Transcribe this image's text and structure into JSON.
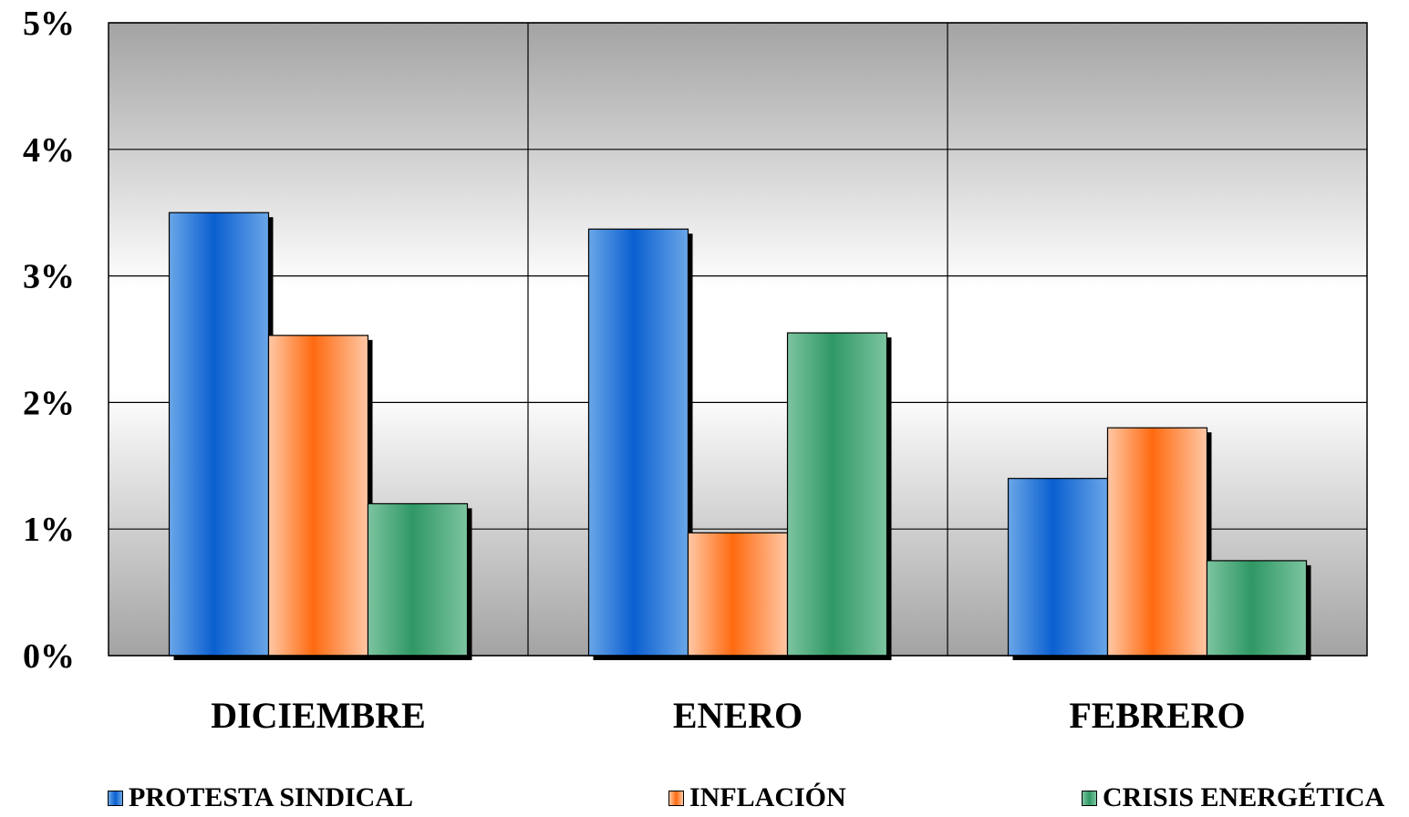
{
  "chart_data": {
    "type": "bar",
    "categories": [
      "DICIEMBRE",
      "ENERO",
      "FEBRERO"
    ],
    "series": [
      {
        "name": "PROTESTA SINDICAL",
        "values": [
          3.5,
          3.37,
          1.4
        ]
      },
      {
        "name": "INFLACIÓN",
        "values": [
          2.53,
          0.97,
          1.8
        ]
      },
      {
        "name": "CRISIS ENERGÉTICA",
        "values": [
          1.2,
          2.55,
          0.75
        ]
      }
    ],
    "yticks": [
      "0%",
      "1%",
      "2%",
      "3%",
      "4%",
      "5%"
    ],
    "ylim": [
      0,
      5
    ],
    "ylabel": "",
    "xlabel": "",
    "grid": true,
    "legend_position": "bottom",
    "colors": {
      "PROTESTA SINDICAL": "#1f66d0",
      "INFLACIÓN": "#ff6a10",
      "CRISIS ENERGÉTICA": "#2f9864"
    }
  }
}
